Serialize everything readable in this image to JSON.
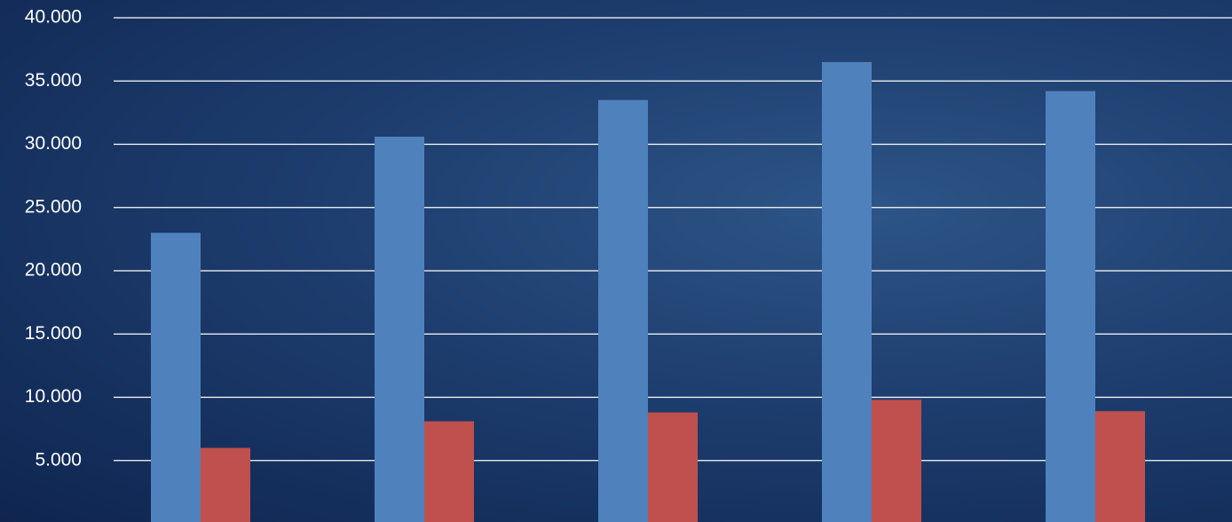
{
  "chart_data": {
    "type": "bar",
    "categories": [
      null,
      null,
      null,
      null,
      null
    ],
    "series": [
      {
        "color": "#4f81bd",
        "values": [
          23000,
          30600,
          33500,
          36500,
          34200
        ]
      },
      {
        "color": "#c0504d",
        "values": [
          6000,
          8100,
          8800,
          9800,
          8900
        ]
      }
    ],
    "ylim": [
      0,
      40000
    ],
    "yticks": [
      {
        "value": 5000,
        "label": "5.000"
      },
      {
        "value": 10000,
        "label": "10.000"
      },
      {
        "value": 15000,
        "label": "15.000"
      },
      {
        "value": 20000,
        "label": "20.000"
      },
      {
        "value": 25000,
        "label": "25.000"
      },
      {
        "value": 30000,
        "label": "30.000"
      },
      {
        "value": 35000,
        "label": "35.000"
      },
      {
        "value": 40000,
        "label": "40.000"
      }
    ],
    "grid": true
  }
}
